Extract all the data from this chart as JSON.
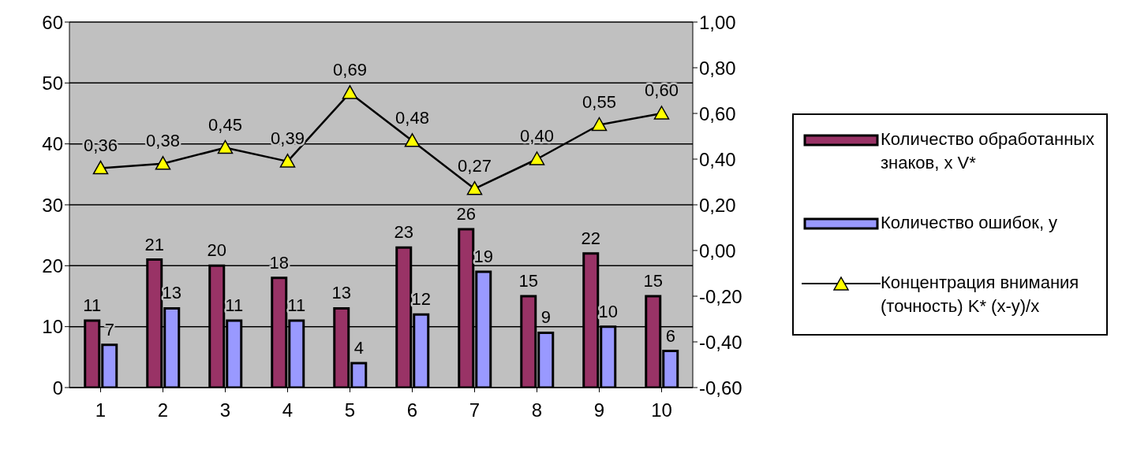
{
  "chart_data": {
    "type": "bar",
    "categories": [
      "1",
      "2",
      "3",
      "4",
      "5",
      "6",
      "7",
      "8",
      "9",
      "10"
    ],
    "series": [
      {
        "name": "Количество обработанных знаков, x V*",
        "color": "#993366",
        "values": [
          11,
          21,
          20,
          18,
          13,
          23,
          26,
          15,
          22,
          15
        ],
        "value_labels": [
          "11",
          "21",
          "20",
          "18",
          "13",
          "23",
          "26",
          "15",
          "22",
          "15"
        ]
      },
      {
        "name": "Количество ошибок, y",
        "color": "#9999ff",
        "values": [
          7,
          13,
          11,
          11,
          4,
          12,
          19,
          9,
          10,
          6
        ],
        "value_labels": [
          "7",
          "13",
          "11",
          "11",
          "4",
          "12",
          "19",
          "9",
          "10",
          "6"
        ]
      },
      {
        "name": "Концентрация внимания (точность) K*  (x-y)/x",
        "type": "line",
        "axis": "y2",
        "color": "#000000",
        "values": [
          0.36,
          0.38,
          0.45,
          0.39,
          0.69,
          0.48,
          0.27,
          0.4,
          0.55,
          0.6
        ],
        "value_labels": [
          "0,36",
          "0,38",
          "0,45",
          "0,39",
          "0,69",
          "0,48",
          "0,27",
          "0,40",
          "0,55",
          "0,60"
        ]
      }
    ],
    "ylim": [
      0,
      60
    ],
    "yticks": [
      0,
      10,
      20,
      30,
      40,
      50,
      60
    ],
    "y2lim": [
      -0.6,
      1.0
    ],
    "y2ticks": [
      {
        "value": -0.6,
        "label": "-0,60"
      },
      {
        "value": -0.4,
        "label": "-0,40"
      },
      {
        "value": -0.2,
        "label": "-0,20"
      },
      {
        "value": 0,
        "label": "0,00"
      },
      {
        "value": 0.2,
        "label": "0,20"
      },
      {
        "value": 0.4,
        "label": "0,40"
      },
      {
        "value": 0.6,
        "label": "0,60"
      },
      {
        "value": 0.8,
        "label": "0,80"
      },
      {
        "value": 1.0,
        "label": "1,00"
      }
    ],
    "grid": "y",
    "legend": "right",
    "marker": "triangle"
  }
}
